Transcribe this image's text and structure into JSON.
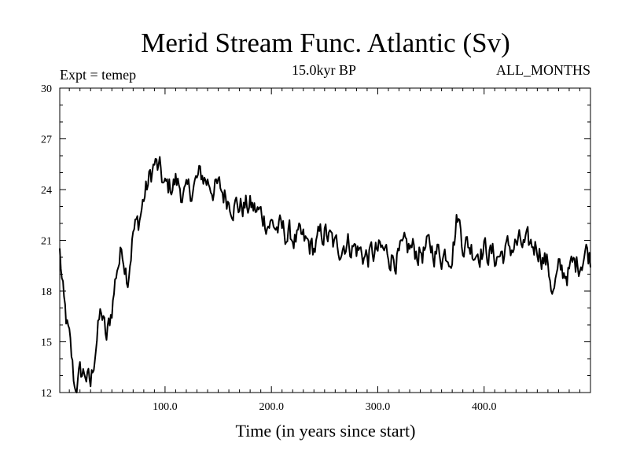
{
  "chart_data": {
    "type": "line",
    "title": "Merid Stream Func. Atlantic (Sv)",
    "experiment": "Expt = temep",
    "subtitle": "15.0kyr BP",
    "months": "ALL_MONTHS",
    "xlabel": "Time (in years since start)",
    "ylabel": "",
    "xlim": [
      1,
      500
    ],
    "ylim": [
      12,
      30
    ],
    "yticks": [
      12,
      15,
      18,
      21,
      24,
      27,
      30
    ],
    "ytick_labels": [
      "12",
      "15",
      "18",
      "21",
      "24",
      "27",
      "30"
    ],
    "xticks": [
      100,
      200,
      300,
      400
    ],
    "xtick_labels": [
      "100.0",
      "200.0",
      "300.0",
      "400.0"
    ],
    "grid": false,
    "series": [
      {
        "name": "Merid Stream Func. Atlantic",
        "color": "#000000",
        "x": [
          1,
          5,
          10,
          15,
          20,
          25,
          30,
          35,
          40,
          45,
          50,
          55,
          60,
          65,
          70,
          75,
          80,
          85,
          90,
          95,
          100,
          105,
          110,
          115,
          120,
          125,
          130,
          135,
          140,
          145,
          150,
          160,
          170,
          180,
          190,
          200,
          210,
          220,
          230,
          240,
          250,
          260,
          270,
          280,
          290,
          300,
          310,
          320,
          330,
          340,
          350,
          360,
          370,
          375,
          380,
          390,
          400,
          410,
          420,
          430,
          440,
          450,
          460,
          465,
          470,
          480,
          490,
          495,
          500
        ],
        "values": [
          20.3,
          17.0,
          15.0,
          12.3,
          13.0,
          13.2,
          12.3,
          15.0,
          16.8,
          15.0,
          17.0,
          19.5,
          20.5,
          19.0,
          21.5,
          22.0,
          23.5,
          24.5,
          25.5,
          25.0,
          24.0,
          24.2,
          24.5,
          24.0,
          23.5,
          24.0,
          24.5,
          24.8,
          24.5,
          24.2,
          24.0,
          23.5,
          23.0,
          23.0,
          22.5,
          22.0,
          21.5,
          21.2,
          20.8,
          20.5,
          21.5,
          20.5,
          21.0,
          20.5,
          20.0,
          20.3,
          20.2,
          20.0,
          20.5,
          20.3,
          20.5,
          20.2,
          20.5,
          22.5,
          21.0,
          20.5,
          20.5,
          20.0,
          20.3,
          20.8,
          20.5,
          20.8,
          19.5,
          18.0,
          19.0,
          19.2,
          19.8,
          20.5,
          20.0
        ]
      }
    ]
  }
}
